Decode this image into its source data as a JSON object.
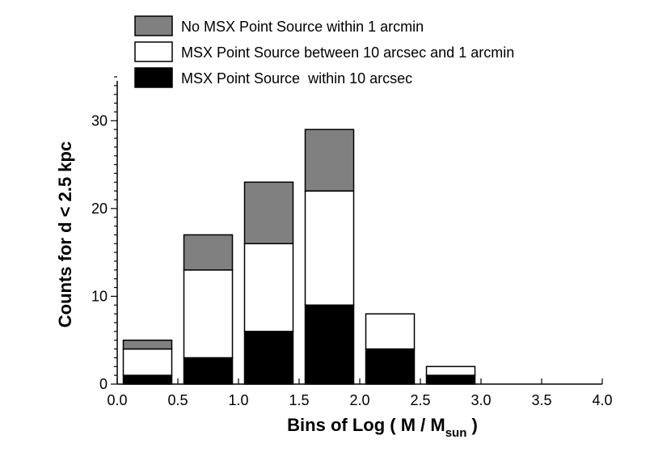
{
  "chart_data": {
    "type": "bar",
    "stacked": true,
    "categories": [
      "0.0-0.5",
      "0.5-1.0",
      "1.0-1.5",
      "1.5-2.0",
      "2.0-2.5",
      "2.5-3.0",
      "3.0-3.5",
      "3.5-4.0"
    ],
    "bins": [
      [
        0.0,
        0.5
      ],
      [
        0.5,
        1.0
      ],
      [
        1.0,
        1.5
      ],
      [
        1.5,
        2.0
      ],
      [
        2.0,
        2.5
      ],
      [
        2.5,
        3.0
      ],
      [
        3.0,
        3.5
      ],
      [
        3.5,
        4.0
      ]
    ],
    "series": [
      {
        "name": "MSX Point Source  within 10 arcsec",
        "color": "#000000",
        "values": [
          1,
          3,
          6,
          9,
          4,
          1,
          0,
          0
        ]
      },
      {
        "name": "MSX Point Source between 10 arcsec and 1 arcmin",
        "color": "#ffffff",
        "values": [
          3,
          10,
          10,
          13,
          4,
          1,
          0,
          0
        ]
      },
      {
        "name": "No MSX Point Source within 1 arcmin",
        "color": "#808080",
        "values": [
          1,
          4,
          7,
          7,
          0,
          0,
          0,
          0
        ]
      }
    ],
    "legend_order": [
      2,
      1,
      0
    ],
    "legend_position": "top",
    "xlabel_main": "Bins of Log ( M / M",
    "xlabel_sub": "sun",
    "xlabel_end": " )",
    "ylabel": "Counts for d < 2.5 kpc",
    "xlim": [
      0.0,
      4.0
    ],
    "ylim": [
      0,
      35
    ],
    "xticks": [
      "0.0",
      "0.5",
      "1.0",
      "1.5",
      "2.0",
      "2.5",
      "3.0",
      "3.5",
      "4.0"
    ],
    "yticks": [
      "0",
      "10",
      "20",
      "30"
    ],
    "grid": false
  }
}
